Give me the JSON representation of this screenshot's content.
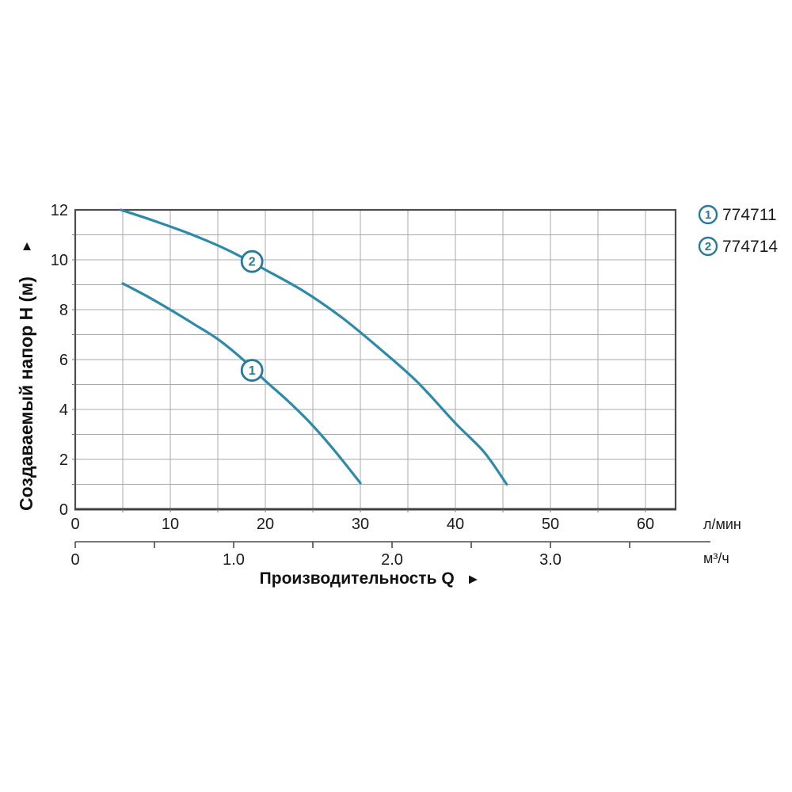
{
  "page": {
    "background": "#ffffff"
  },
  "chart_data": {
    "type": "line",
    "title": "",
    "ylabel": "Создаваемый напор H (м)",
    "ylabel_arrow": "▲",
    "xlabel": "Производительность Q",
    "xlabel_arrow": "►",
    "legend_position": "top-right",
    "grid": true,
    "y_axis": {
      "range": [
        0,
        12
      ],
      "grid_step": 1,
      "ticks": [
        {
          "v": 0,
          "label": "0"
        },
        {
          "v": 2,
          "label": "2"
        },
        {
          "v": 4,
          "label": "4"
        },
        {
          "v": 6,
          "label": "6"
        },
        {
          "v": 8,
          "label": "8"
        },
        {
          "v": 10,
          "label": "10"
        },
        {
          "v": 12,
          "label": "12"
        }
      ]
    },
    "x_axis_lmin": {
      "unit": "л/мин",
      "range": [
        0,
        63.2
      ],
      "grid_step": 5,
      "ticks": [
        {
          "v": 0,
          "label": "0"
        },
        {
          "v": 10,
          "label": "10"
        },
        {
          "v": 20,
          "label": "20"
        },
        {
          "v": 30,
          "label": "30"
        },
        {
          "v": 40,
          "label": "40"
        },
        {
          "v": 50,
          "label": "50"
        },
        {
          "v": 60,
          "label": "60"
        }
      ]
    },
    "x_axis_m3h": {
      "unit": "м³/ч",
      "range": [
        0,
        4.0
      ],
      "minor_tick_step": 0.5,
      "minor_tick_max": 3.5,
      "ticks": [
        {
          "v": 0,
          "label": "0"
        },
        {
          "v": 1,
          "label": "1.0"
        },
        {
          "v": 2,
          "label": "2.0"
        },
        {
          "v": 3,
          "label": "3.0"
        }
      ]
    },
    "series": [
      {
        "id": "1",
        "code": "774711",
        "marker_at": [
          18.6,
          5.57
        ],
        "points": [
          [
            5,
            9.05
          ],
          [
            7.5,
            8.55
          ],
          [
            10,
            8.0
          ],
          [
            12.5,
            7.42
          ],
          [
            15,
            6.82
          ],
          [
            17.5,
            6.05
          ],
          [
            20,
            5.15
          ],
          [
            22.5,
            4.3
          ],
          [
            25,
            3.35
          ],
          [
            27.5,
            2.25
          ],
          [
            30,
            1.05
          ]
        ]
      },
      {
        "id": "2",
        "code": "774714",
        "marker_at": [
          18.6,
          9.93
        ],
        "points": [
          [
            4.8,
            12
          ],
          [
            8,
            11.6
          ],
          [
            12,
            11.05
          ],
          [
            16,
            10.4
          ],
          [
            20,
            9.6
          ],
          [
            24,
            8.75
          ],
          [
            28,
            7.7
          ],
          [
            32,
            6.45
          ],
          [
            36,
            5.1
          ],
          [
            40,
            3.45
          ],
          [
            43,
            2.3
          ],
          [
            45.4,
            1.0
          ]
        ]
      }
    ],
    "colors": {
      "curve": "#2e8aa9",
      "marker": "#287a99",
      "grid": "#a8a8ac",
      "minor_tick": "#77777b",
      "border": "#4c4c51",
      "border_bottom": "#3f3f44",
      "text": "#1a1a1a",
      "background": "#ffffff"
    }
  }
}
